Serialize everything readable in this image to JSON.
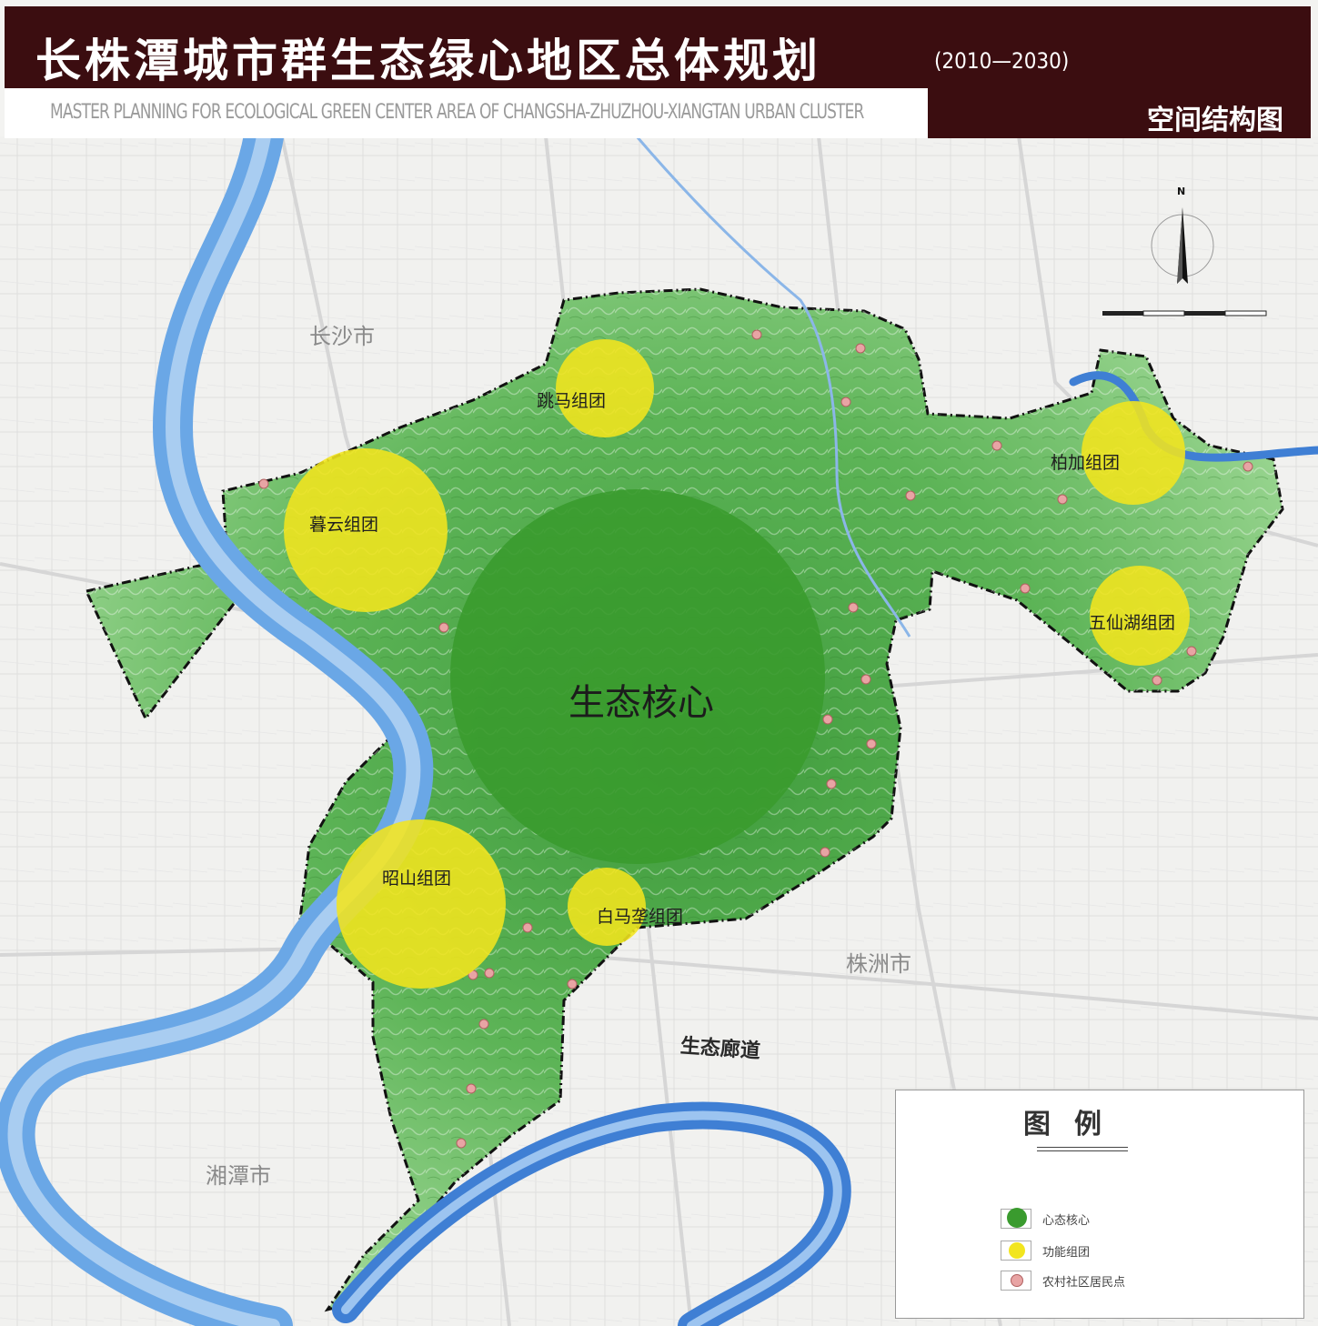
{
  "header": {
    "title": "长株潭城市群生态绿心地区总体规划",
    "years": "(2010—2030)",
    "subtitle": "MASTER PLANNING FOR ECOLOGICAL GREEN CENTER AREA OF CHANGSHA-ZHUZHOU-XIANGTAN  URBAN CLUSTER",
    "tag": "空间结构图"
  },
  "map": {
    "cities": {
      "changsha": "长沙市",
      "zhuzhou": "株洲市",
      "xiangtan": "湘潭市"
    },
    "core": "生态核心",
    "groups": {
      "tiaoma": "跳马组团",
      "muyun": "暮云组团",
      "baijia": "柏加组团",
      "wuxianhu": "五仙湖组团",
      "zhaoshan": "昭山组团",
      "baimaxiang": "白马垄组团"
    },
    "corridor": "生态廊道",
    "colors": {
      "core": "#3a9b2e",
      "group": "#f2e51e",
      "village": "#e8a4a4",
      "water": "#6aa7e6",
      "green": "#5cb352"
    }
  },
  "north_arrow": {
    "label": "N"
  },
  "legend": {
    "title": "图例",
    "items": [
      {
        "label": "心态核心",
        "color": "#3a9b2e"
      },
      {
        "label": "功能组团",
        "color": "#f2e51e"
      },
      {
        "label": "农村社区居民点",
        "color": "#e8a4a4"
      }
    ]
  }
}
